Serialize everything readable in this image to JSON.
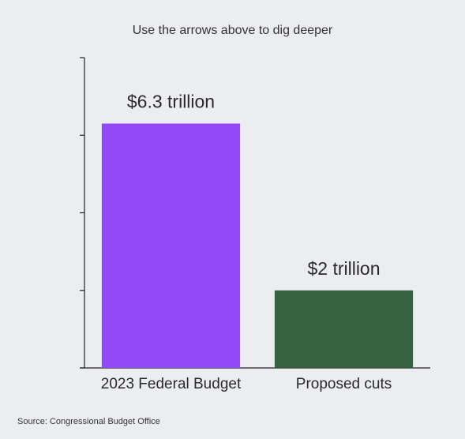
{
  "chart_data": {
    "type": "bar",
    "subtitle": "Use the arrows above to dig deeper",
    "categories": [
      "2023 Federal Budget",
      "Proposed cuts"
    ],
    "values": [
      6.3,
      2
    ],
    "data_labels": [
      "$6.3 trillion",
      "$2 trillion"
    ],
    "colors": [
      "#9149f5",
      "#356340"
    ],
    "ylim": [
      0,
      8
    ],
    "ytick_count": 4,
    "grid": false,
    "source": "Source: Congressional Budget Office"
  }
}
